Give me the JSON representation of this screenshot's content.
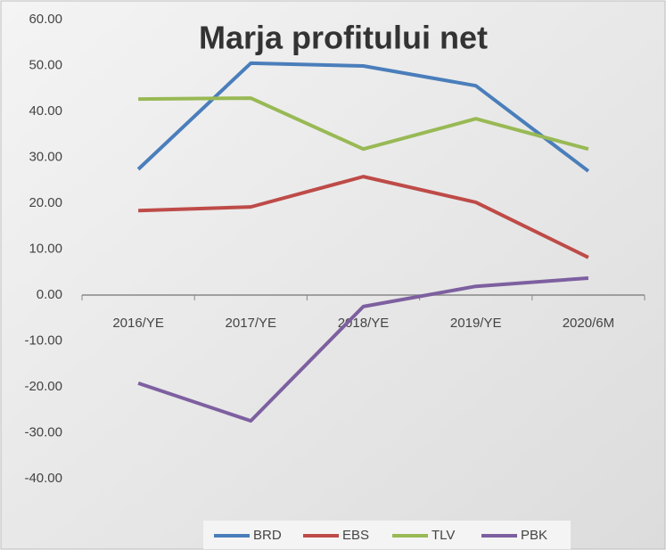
{
  "chart_data": {
    "type": "line",
    "title": "Marja profitului net",
    "categories": [
      "2016/YE",
      "2017/YE",
      "2018/YE",
      "2019/YE",
      "2020/6M"
    ],
    "series": [
      {
        "name": "BRD",
        "color": "#4a7ebb",
        "values": [
          27.4,
          50.5,
          49.9,
          45.6,
          27.0
        ]
      },
      {
        "name": "EBS",
        "color": "#be4b48",
        "values": [
          18.4,
          19.2,
          25.8,
          20.2,
          8.2
        ]
      },
      {
        "name": "TLV",
        "color": "#98b954",
        "values": [
          42.7,
          42.9,
          31.8,
          38.4,
          31.8
        ]
      },
      {
        "name": "PBK",
        "color": "#7d60a0",
        "values": [
          -19.2,
          -27.4,
          -2.5,
          1.9,
          3.7
        ]
      }
    ],
    "ylim": [
      -40,
      60
    ],
    "yticks": [
      {
        "value": 60,
        "label": "60.00"
      },
      {
        "value": 50,
        "label": "50.00"
      },
      {
        "value": 40,
        "label": "40.00"
      },
      {
        "value": 30,
        "label": "30.00"
      },
      {
        "value": 20,
        "label": "20.00"
      },
      {
        "value": 10,
        "label": "10.00"
      },
      {
        "value": 0,
        "label": "0.00"
      },
      {
        "value": -10,
        "label": "-10.00"
      },
      {
        "value": -20,
        "label": "-20.00"
      },
      {
        "value": -30,
        "label": "-30.00"
      },
      {
        "value": -40,
        "label": "-40.00"
      }
    ],
    "grid": false,
    "legend": "bottom"
  }
}
